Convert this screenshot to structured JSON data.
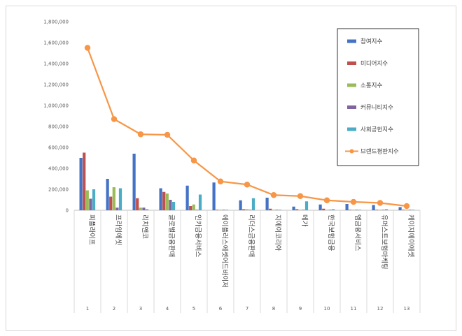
{
  "chart_data": {
    "type": "bar",
    "title": "",
    "xlabel": "",
    "ylabel": "",
    "ylim": [
      0,
      1800000
    ],
    "yticks": [
      "0",
      "200,000",
      "400,000",
      "600,000",
      "800,000",
      "1,000,000",
      "1,200,000",
      "1,400,000",
      "1,600,000",
      "1,800,000"
    ],
    "grid": false,
    "legend_position": "top-right",
    "categories": [
      "피플라이프",
      "프라임에셋",
      "리치앤코",
      "글로벌금융판매",
      "인카금융서비스",
      "에이플러스에셋어드바이저",
      "리더스금융판매",
      "지에이코리아",
      "메가",
      "한국보험금융",
      "엠금융서비스",
      "유퍼스트보험마케팅",
      "케이지에이에셋"
    ],
    "numbers": [
      "1",
      "2",
      "3",
      "4",
      "5",
      "6",
      "7",
      "8",
      "9",
      "10",
      "11",
      "12",
      "13"
    ],
    "series": [
      {
        "name": "참여지수",
        "kind": "bar",
        "color": "#4472c4",
        "values": [
          500000,
          300000,
          540000,
          210000,
          235000,
          265000,
          95000,
          120000,
          35000,
          55000,
          60000,
          50000,
          30000
        ]
      },
      {
        "name": "미디어지수",
        "kind": "bar",
        "color": "#c0504d",
        "values": [
          550000,
          130000,
          115000,
          175000,
          40000,
          5000,
          10000,
          15000,
          10000,
          15000,
          5000,
          5000,
          5000
        ]
      },
      {
        "name": "소통지수",
        "kind": "bar",
        "color": "#9bbb59",
        "values": [
          190000,
          220000,
          25000,
          160000,
          55000,
          5000,
          10000,
          5000,
          5000,
          5000,
          5000,
          5000,
          5000
        ]
      },
      {
        "name": "커뮤니티지수",
        "kind": "bar",
        "color": "#8064a2",
        "values": [
          110000,
          25000,
          25000,
          100000,
          5000,
          5000,
          5000,
          5000,
          5000,
          5000,
          5000,
          5000,
          5000
        ]
      },
      {
        "name": "사회공헌지수",
        "kind": "bar",
        "color": "#4bacc6",
        "values": [
          200000,
          210000,
          10000,
          80000,
          150000,
          5000,
          115000,
          5000,
          85000,
          10000,
          5000,
          10000,
          5000
        ]
      },
      {
        "name": "브랜드평판지수",
        "kind": "line",
        "color": "#f79646",
        "values": [
          1550000,
          870000,
          725000,
          720000,
          475000,
          275000,
          245000,
          145000,
          135000,
          95000,
          80000,
          70000,
          40000
        ]
      }
    ]
  }
}
